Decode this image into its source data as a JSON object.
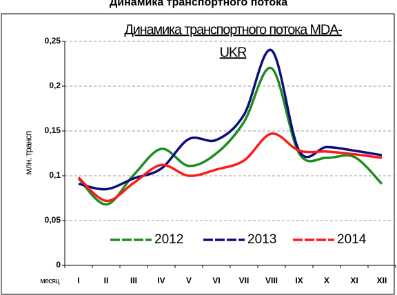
{
  "chart_data": {
    "type": "line",
    "figure_title": "Динамика транспортного потока",
    "title": [
      "Динамика транспортного потока MDA-",
      "UKR"
    ],
    "ylabel": "млн. трансп",
    "xlabel": "месяц",
    "categories": [
      "I",
      "II",
      "III",
      "IV",
      "V",
      "VI",
      "VII",
      "VIII",
      "IX",
      "X",
      "XI",
      "XII"
    ],
    "series": [
      {
        "name": "2012",
        "color": "#1e8c1e",
        "values": [
          0.097,
          0.068,
          0.101,
          0.13,
          0.111,
          0.125,
          0.16,
          0.22,
          0.125,
          0.12,
          0.121,
          0.091
        ]
      },
      {
        "name": "2013",
        "color": "#0d0d7c",
        "values": [
          0.091,
          0.085,
          0.097,
          0.108,
          0.141,
          0.14,
          0.168,
          0.24,
          0.128,
          0.132,
          0.128,
          0.123
        ]
      },
      {
        "name": "2014",
        "color": "#ff1a1a",
        "values": [
          0.098,
          0.072,
          0.092,
          0.112,
          0.1,
          0.107,
          0.117,
          0.147,
          0.128,
          0.127,
          0.124,
          0.12
        ]
      }
    ],
    "ylim": [
      0,
      0.25
    ],
    "yticks": [
      0,
      {
        "value": 0.05,
        "label": "0,05"
      },
      {
        "value": 0.1,
        "label": "0,1"
      },
      {
        "value": 0.15,
        "label": "0,15"
      },
      {
        "value": 0.2,
        "label": "0,2"
      },
      {
        "value": 0.25,
        "label": "0,25"
      }
    ],
    "grid": true,
    "legend": "bottom"
  }
}
